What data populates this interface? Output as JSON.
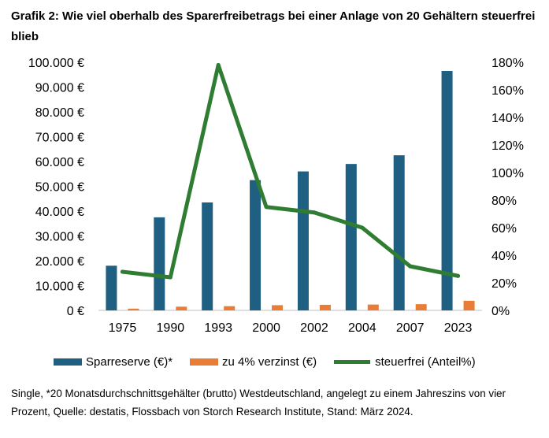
{
  "title": "Grafik 2: Wie viel oberhalb des Sparerfreibetrags bei einer Anlage von 20 Gehältern steuerfrei blieb",
  "footnote": "Single, *20 Monatsdurchschnittsgehälter (brutto) Westdeutschland, angelegt zu einem Jahreszins von vier Prozent, Quelle: destatis, Flossbach von Storch Research Institute, Stand: März 2024.",
  "colors": {
    "sparreserve": "#1f5f82",
    "verzinst": "#e97d35",
    "steuerfrei": "#2e7d32"
  },
  "legend": [
    {
      "label": "Sparreserve (€)*",
      "color": "#1f5f82",
      "kind": "bar"
    },
    {
      "label": "zu 4% verzinst (€)",
      "color": "#e97d35",
      "kind": "bar"
    },
    {
      "label": "steuerfrei (Anteil%)",
      "color": "#2e7d32",
      "kind": "line"
    }
  ],
  "chart_data": {
    "type": "bar",
    "categories": [
      "1975",
      "1990",
      "1993",
      "2000",
      "2002",
      "2004",
      "2007",
      "2023"
    ],
    "series": [
      {
        "name": "Sparreserve (€)*",
        "type": "bar",
        "axis": "left",
        "values": [
          18000,
          37500,
          43500,
          52500,
          56000,
          59000,
          62500,
          96500
        ]
      },
      {
        "name": "zu 4% verzinst (€)",
        "type": "bar",
        "axis": "left",
        "values": [
          700,
          1500,
          1700,
          2100,
          2250,
          2350,
          2500,
          3860
        ]
      },
      {
        "name": "steuerfrei (Anteil%)",
        "type": "line",
        "axis": "right",
        "values": [
          28,
          24,
          178,
          75,
          71,
          60,
          32,
          25
        ]
      }
    ],
    "y_left": {
      "min": 0,
      "max": 100000,
      "ticks": [
        "0 €",
        "10.000 €",
        "20.000 €",
        "30.000 €",
        "40.000 €",
        "50.000 €",
        "60.000 €",
        "70.000 €",
        "80.000 €",
        "90.000 €",
        "100.000 €"
      ]
    },
    "y_right": {
      "min": 0,
      "max": 180,
      "ticks": [
        "0%",
        "20%",
        "40%",
        "60%",
        "80%",
        "100%",
        "120%",
        "140%",
        "160%",
        "180%"
      ]
    },
    "grid": false,
    "legend_position": "bottom"
  }
}
